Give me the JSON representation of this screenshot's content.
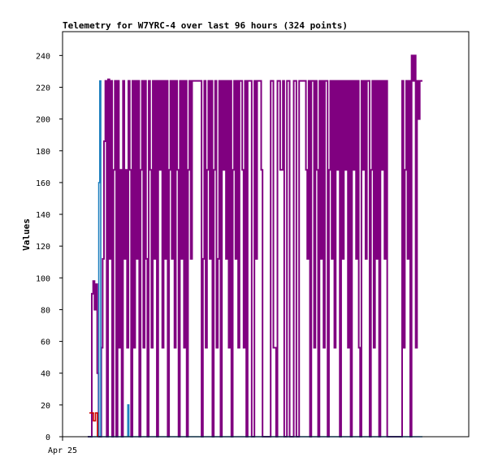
{
  "chart_data": {
    "type": "line",
    "title": "Telemetry for W7YRC-4 over last 96 hours (324 points)",
    "xlabel": "",
    "ylabel": "Values",
    "x_tick_labels": [
      "Apr 25"
    ],
    "ylim": [
      0,
      255
    ],
    "y_ticks": [
      0,
      20,
      40,
      60,
      80,
      100,
      120,
      140,
      160,
      180,
      200,
      220,
      240
    ],
    "grid": false,
    "legend": "none",
    "x_extent_hours": 96,
    "colors": {
      "purple": "#800080",
      "blue": "#1e7fbf",
      "red": "#cc0000"
    },
    "series": [
      {
        "color": "purple",
        "values": [
          0,
          0,
          0,
          90,
          98,
          80,
          96,
          40,
          0,
          0,
          56,
          112,
          186,
          224,
          0,
          225,
          112,
          224,
          0,
          168,
          224,
          0,
          224,
          56,
          168,
          0,
          224,
          112,
          168,
          56,
          224,
          168,
          0,
          224,
          56,
          224,
          112,
          224,
          0,
          168,
          224,
          56,
          224,
          112,
          0,
          224,
          168,
          56,
          224,
          112,
          224,
          0,
          224,
          168,
          224,
          56,
          224,
          112,
          224,
          0,
          168,
          224,
          112,
          224,
          56,
          224,
          168,
          0,
          224,
          112,
          224,
          56,
          224,
          0,
          168,
          224,
          112,
          224,
          224,
          224,
          224,
          224,
          224,
          224,
          0,
          112,
          224,
          56,
          168,
          224,
          112,
          224,
          0,
          168,
          224,
          56,
          112,
          224,
          0,
          224,
          168,
          224,
          112,
          224,
          56,
          224,
          0,
          168,
          224,
          112,
          224,
          56,
          224,
          224,
          168,
          56,
          224,
          0,
          224,
          224,
          224,
          0,
          0,
          224,
          112,
          224,
          224,
          224,
          168,
          0,
          0,
          0,
          0,
          0,
          0,
          224,
          224,
          56,
          56,
          0,
          224,
          224,
          168,
          168,
          224,
          0,
          0,
          224,
          224,
          0,
          0,
          0,
          224,
          224,
          0,
          0,
          224,
          224,
          224,
          224,
          224,
          168,
          112,
          224,
          0,
          224,
          224,
          56,
          224,
          168,
          0,
          224,
          112,
          224,
          56,
          224,
          224,
          0,
          168,
          224,
          112,
          224,
          56,
          224,
          168,
          224,
          0,
          224,
          112,
          224,
          168,
          224,
          56,
          224,
          0,
          224,
          168,
          224,
          112,
          224,
          56,
          0,
          224,
          168,
          224,
          112,
          224,
          224,
          0,
          168,
          224,
          56,
          224,
          112,
          224,
          0,
          224,
          168,
          224,
          112,
          224,
          0,
          0,
          0,
          0,
          0,
          0,
          0,
          0,
          0,
          0,
          0,
          224,
          56,
          168,
          224,
          112,
          224,
          0,
          240,
          224,
          240,
          56,
          224,
          200,
          224,
          224,
          224
        ]
      },
      {
        "color": "blue",
        "values": [
          0,
          0,
          0,
          0,
          0,
          0,
          0,
          0,
          0,
          0,
          0,
          160,
          224,
          0,
          0,
          0,
          0,
          0,
          0,
          0,
          0,
          0,
          0,
          0,
          0,
          0,
          0,
          0,
          0,
          0,
          0,
          0,
          0,
          0,
          0,
          0,
          0,
          0,
          0,
          0,
          20,
          0,
          0,
          0,
          0,
          0,
          0,
          0,
          0,
          0,
          0,
          0,
          0,
          0,
          0,
          0,
          0,
          0,
          0,
          0,
          0,
          0,
          0,
          0,
          0,
          0,
          0,
          0,
          0,
          0,
          0,
          0,
          0,
          0,
          0,
          0,
          0,
          0,
          0,
          0,
          0,
          0,
          0,
          0,
          0,
          0,
          0,
          0,
          0,
          0,
          0,
          0,
          0,
          0,
          0,
          0,
          0,
          0,
          0,
          0,
          0,
          0,
          0,
          0,
          0,
          0,
          0,
          0,
          0,
          0,
          0,
          0,
          0,
          0,
          0,
          0,
          0,
          0,
          0,
          0,
          0,
          0,
          0,
          0,
          0,
          0,
          0,
          0,
          0,
          0,
          0,
          0,
          0,
          0,
          0,
          0,
          0,
          0,
          0,
          0,
          0,
          0,
          0,
          0,
          0,
          0,
          0,
          0,
          0,
          0,
          0,
          0,
          0,
          0,
          0,
          0,
          0,
          0,
          0,
          0,
          0,
          0,
          0,
          0,
          0,
          0,
          0,
          0,
          0,
          0,
          0,
          0,
          0,
          0,
          0,
          0,
          0,
          0,
          0,
          0,
          0,
          0,
          0,
          0,
          0,
          0,
          0,
          0,
          0,
          0,
          0,
          0,
          0,
          0,
          0,
          0,
          0,
          0,
          0,
          0,
          0,
          0,
          0,
          0,
          0,
          0,
          0,
          0,
          0,
          0,
          0,
          0,
          0,
          0,
          0,
          0,
          0,
          0,
          0,
          0,
          0,
          0,
          0,
          0,
          0,
          0,
          0,
          0,
          0,
          0,
          0,
          0,
          0,
          0,
          0,
          0,
          0,
          0,
          0,
          0,
          0,
          0,
          0,
          0,
          0,
          0,
          0,
          0,
          0,
          0,
          0,
          0,
          0,
          0,
          0,
          0,
          0,
          0,
          0,
          0,
          0,
          0,
          0,
          0,
          0,
          0,
          0,
          0,
          0,
          0,
          0,
          0,
          0,
          0,
          0,
          0,
          0,
          0,
          0,
          0,
          0,
          0,
          0,
          0,
          0,
          0,
          0,
          0,
          0,
          0,
          0,
          0,
          0,
          0,
          0,
          0,
          0,
          0,
          0,
          0,
          0,
          0,
          0,
          0,
          0,
          0,
          0,
          0,
          0,
          0,
          0,
          0,
          0,
          0,
          0,
          0,
          0,
          0,
          0,
          0,
          0,
          0,
          0,
          0,
          0,
          0,
          0,
          0,
          0,
          0,
          0,
          0,
          0,
          0,
          0
        ]
      },
      {
        "color": "red",
        "values": [
          15,
          15,
          10,
          15,
          0
        ]
      }
    ]
  }
}
